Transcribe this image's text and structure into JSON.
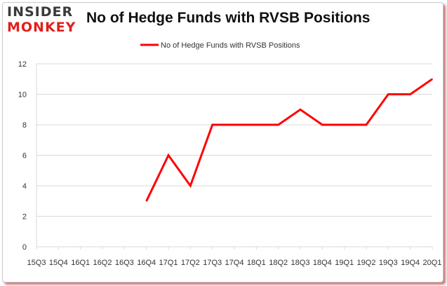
{
  "brand": {
    "logo_top": "INSIDER",
    "logo_bottom": "MONKEY"
  },
  "chart_data": {
    "type": "line",
    "title": "No of Hedge Funds with RVSB Positions",
    "xlabel": "",
    "ylabel": "",
    "categories": [
      "2015Q3",
      "2015Q4",
      "2016Q1",
      "2016Q2",
      "2016Q3",
      "2016Q4",
      "2017Q1",
      "2017Q2",
      "2017Q3",
      "2017Q4",
      "2018Q1",
      "2018Q2",
      "2018Q3",
      "2018Q4",
      "2019Q1",
      "2019Q2",
      "2019Q3",
      "2019Q4",
      "2020Q1"
    ],
    "tick_labels": [
      "15Q3",
      "15Q4",
      "16Q1",
      "16Q2",
      "16Q3",
      "16Q4",
      "17Q1",
      "17Q2",
      "17Q3",
      "17Q4",
      "18Q1",
      "18Q2",
      "18Q3",
      "18Q4",
      "19Q1",
      "19Q2",
      "19Q3",
      "19Q4",
      "20Q1"
    ],
    "series": [
      {
        "name": "No of Hedge Funds with RVSB Positions",
        "color": "#ff0000",
        "values": [
          null,
          null,
          null,
          null,
          null,
          3,
          6,
          4,
          8,
          8,
          8,
          8,
          9,
          8,
          8,
          8,
          10,
          10,
          11
        ]
      }
    ],
    "ylim": [
      0,
      12
    ],
    "yticks": [
      0,
      2,
      4,
      6,
      8,
      10,
      12
    ],
    "grid": true,
    "legend": "top"
  }
}
